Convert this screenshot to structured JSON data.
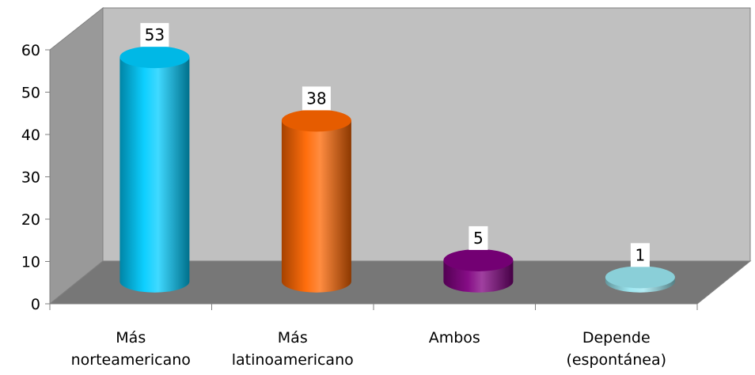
{
  "chart_data": {
    "type": "bar",
    "style": "3d-cylinder",
    "categories": [
      [
        "Más",
        "norteamericano"
      ],
      [
        "Más",
        "latinoamericano"
      ],
      [
        "Ambos"
      ],
      [
        "Depende",
        "(espontánea)"
      ]
    ],
    "values": [
      53,
      38,
      5,
      1
    ],
    "data_labels": [
      "53",
      "38",
      "5",
      "1"
    ],
    "bar_colors": [
      "#00ccff",
      "#ff6600",
      "#800080",
      "#99e6f0"
    ],
    "ylim": [
      0,
      60
    ],
    "yticks": [
      0,
      10,
      20,
      30,
      40,
      50,
      60
    ],
    "ytick_labels": [
      "0",
      "10",
      "20",
      "30",
      "40",
      "50",
      "60"
    ],
    "title": "",
    "xlabel": "",
    "ylabel": "",
    "grid": false,
    "legend": "none",
    "colors": {
      "back_wall": "#c0c0c0",
      "side_wall": "#999999",
      "floor": "#777777",
      "axis": "#808080",
      "label_box": "#ffffff"
    }
  }
}
